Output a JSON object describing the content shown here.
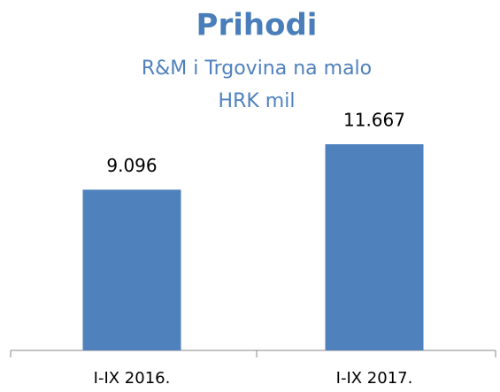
{
  "chart_data": {
    "type": "bar",
    "title": "Prihodi",
    "subtitle": [
      "R&M i Trgovina na malo",
      "HRK mil"
    ],
    "categories": [
      "I-IX 2016.",
      "I-IX 2017."
    ],
    "values": [
      9096,
      11667
    ],
    "value_labels": [
      "9.096",
      "11.667"
    ],
    "color": "#4f81bd"
  }
}
